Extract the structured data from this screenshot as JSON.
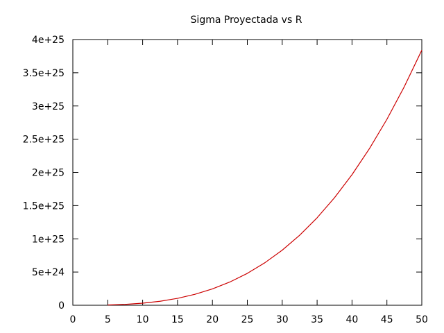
{
  "chart_data": {
    "type": "line",
    "title": "Sigma Proyectada vs R",
    "xlabel": "",
    "ylabel": "",
    "xlim": [
      0,
      50
    ],
    "ylim": [
      0,
      4e+25
    ],
    "grid": false,
    "x_ticks": [
      0,
      5,
      10,
      15,
      20,
      25,
      30,
      35,
      40,
      45,
      50
    ],
    "x_tick_labels": [
      "0",
      "5",
      "10",
      "15",
      "20",
      "25",
      "30",
      "35",
      "40",
      "45",
      "50"
    ],
    "y_ticks": [
      0,
      5e+24,
      1e+25,
      1.5e+25,
      2e+25,
      2.5e+25,
      3e+25,
      3.5e+25,
      4e+25
    ],
    "y_tick_labels": [
      "0",
      "5e+24",
      "1e+25",
      "1.5e+25",
      "2e+25",
      "2.5e+25",
      "3e+25",
      "3.5e+25",
      "4e+25"
    ],
    "series": [
      {
        "color": "#cc0000",
        "x": [
          5,
          7.5,
          10,
          12.5,
          15,
          17.5,
          20,
          22.5,
          25,
          27.5,
          30,
          32.5,
          35,
          37.5,
          40,
          42.5,
          45,
          47.5,
          50
        ],
        "y": [
          4e+22,
          1.3e+23,
          3.1e+23,
          6e+23,
          1.04e+24,
          1.65e+24,
          2.46e+24,
          3.5e+24,
          4.8e+24,
          6.39e+24,
          8.29e+24,
          1.054e+25,
          1.317e+25,
          1.62e+25,
          1.966e+25,
          2.358e+25,
          2.799e+25,
          3.292e+25,
          3.84e+25
        ]
      }
    ]
  }
}
